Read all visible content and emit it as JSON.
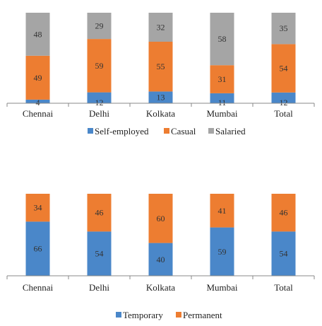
{
  "chart_data": [
    {
      "type": "bar",
      "stacked": true,
      "percent_stacked": true,
      "categories": [
        "Chennai",
        "Delhi",
        "Kolkata",
        "Mumbai",
        "Total"
      ],
      "series": [
        {
          "name": "Self-employed",
          "color": "#4a87c9",
          "values": [
            4,
            12,
            13,
            11,
            12
          ]
        },
        {
          "name": "Casual",
          "color": "#ed7d31",
          "values": [
            49,
            59,
            55,
            31,
            54
          ]
        },
        {
          "name": "Salaried",
          "color": "#a5a5a5",
          "values": [
            48,
            29,
            32,
            58,
            35
          ]
        }
      ],
      "ylim": [
        0,
        100
      ],
      "grid": false,
      "legend": "bottom"
    },
    {
      "type": "bar",
      "stacked": true,
      "percent_stacked": true,
      "categories": [
        "Chennai",
        "Delhi",
        "Kolkata",
        "Mumbai",
        "Total"
      ],
      "series": [
        {
          "name": "Temporary",
          "color": "#4a87c9",
          "values": [
            66,
            54,
            40,
            59,
            54
          ]
        },
        {
          "name": "Permanent",
          "color": "#ed7d31",
          "values": [
            34,
            46,
            60,
            41,
            46
          ]
        }
      ],
      "ylim": [
        0,
        100
      ],
      "grid": false,
      "legend": "bottom"
    }
  ]
}
